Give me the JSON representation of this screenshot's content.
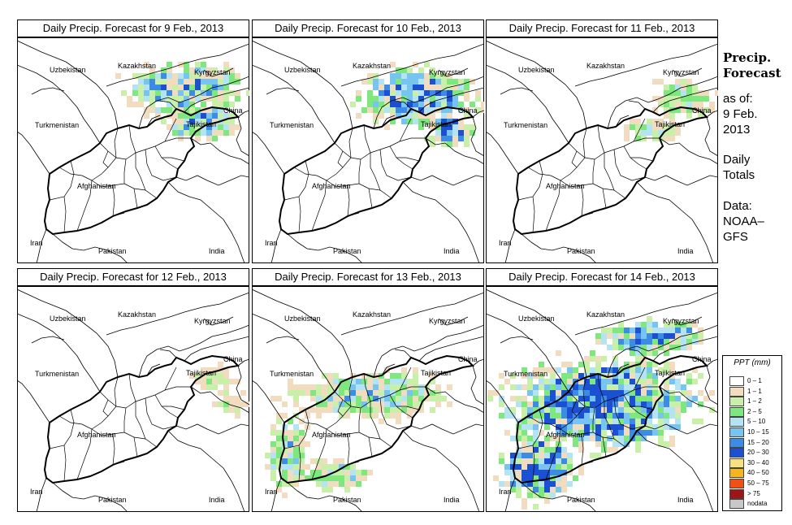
{
  "panels": [
    {
      "title": "Daily Precip. Forecast for  9 Feb., 2013",
      "intensity": 3
    },
    {
      "title": "Daily Precip. Forecast for  10 Feb., 2013",
      "intensity": 4
    },
    {
      "title": "Daily Precip. Forecast for  11 Feb., 2013",
      "intensity": 1
    },
    {
      "title": "Daily Precip. Forecast for  12 Feb., 2013",
      "intensity": 0
    },
    {
      "title": "Daily Precip. Forecast for  13 Feb., 2013",
      "intensity": 2
    },
    {
      "title": "Daily Precip. Forecast for  14 Feb., 2013",
      "intensity": 5
    }
  ],
  "map_labels": {
    "kazakhstan": "Kazakhstan",
    "uzbekistan": "Uzbekistan",
    "kyrgyzstan": "Kyrgyzstan",
    "turkmenistan": "Turkmenistan",
    "tajikistan": "Tajikistan",
    "china": "China",
    "afghanistan": "Afghanistan",
    "iran": "Iran",
    "pakistan": "Pakistan",
    "india": "India"
  },
  "side_info": {
    "heading_line1": "Precip.",
    "heading_line2": "Forecast",
    "asof": "as of:",
    "date_line1": "9 Feb.",
    "date_line2": "2013",
    "totals_line1": "Daily",
    "totals_line2": "Totals",
    "data_line1": "Data:",
    "data_line2": "NOAA–",
    "data_line3": "GFS"
  },
  "legend": {
    "title": "PPT (mm)",
    "items": [
      {
        "label": "0 – 1",
        "color": "#ffffff"
      },
      {
        "label": "1 – 1",
        "color": "#f2dcc0"
      },
      {
        "label": "1 – 2",
        "color": "#c8f0a8"
      },
      {
        "label": "2 – 5",
        "color": "#7ee87e"
      },
      {
        "label": "5 – 10",
        "color": "#b4e4f4"
      },
      {
        "label": "10 – 15",
        "color": "#78c4f0"
      },
      {
        "label": "15 – 20",
        "color": "#3c8ce6"
      },
      {
        "label": "20 – 30",
        "color": "#1c50d2"
      },
      {
        "label": "30 – 40",
        "color": "#f8e080"
      },
      {
        "label": "40 – 50",
        "color": "#f8b41c"
      },
      {
        "label": "50 – 75",
        "color": "#f05014"
      },
      {
        "label": "> 75",
        "color": "#a01414"
      },
      {
        "label": "nodata",
        "color": "#c8c8c8"
      }
    ]
  }
}
